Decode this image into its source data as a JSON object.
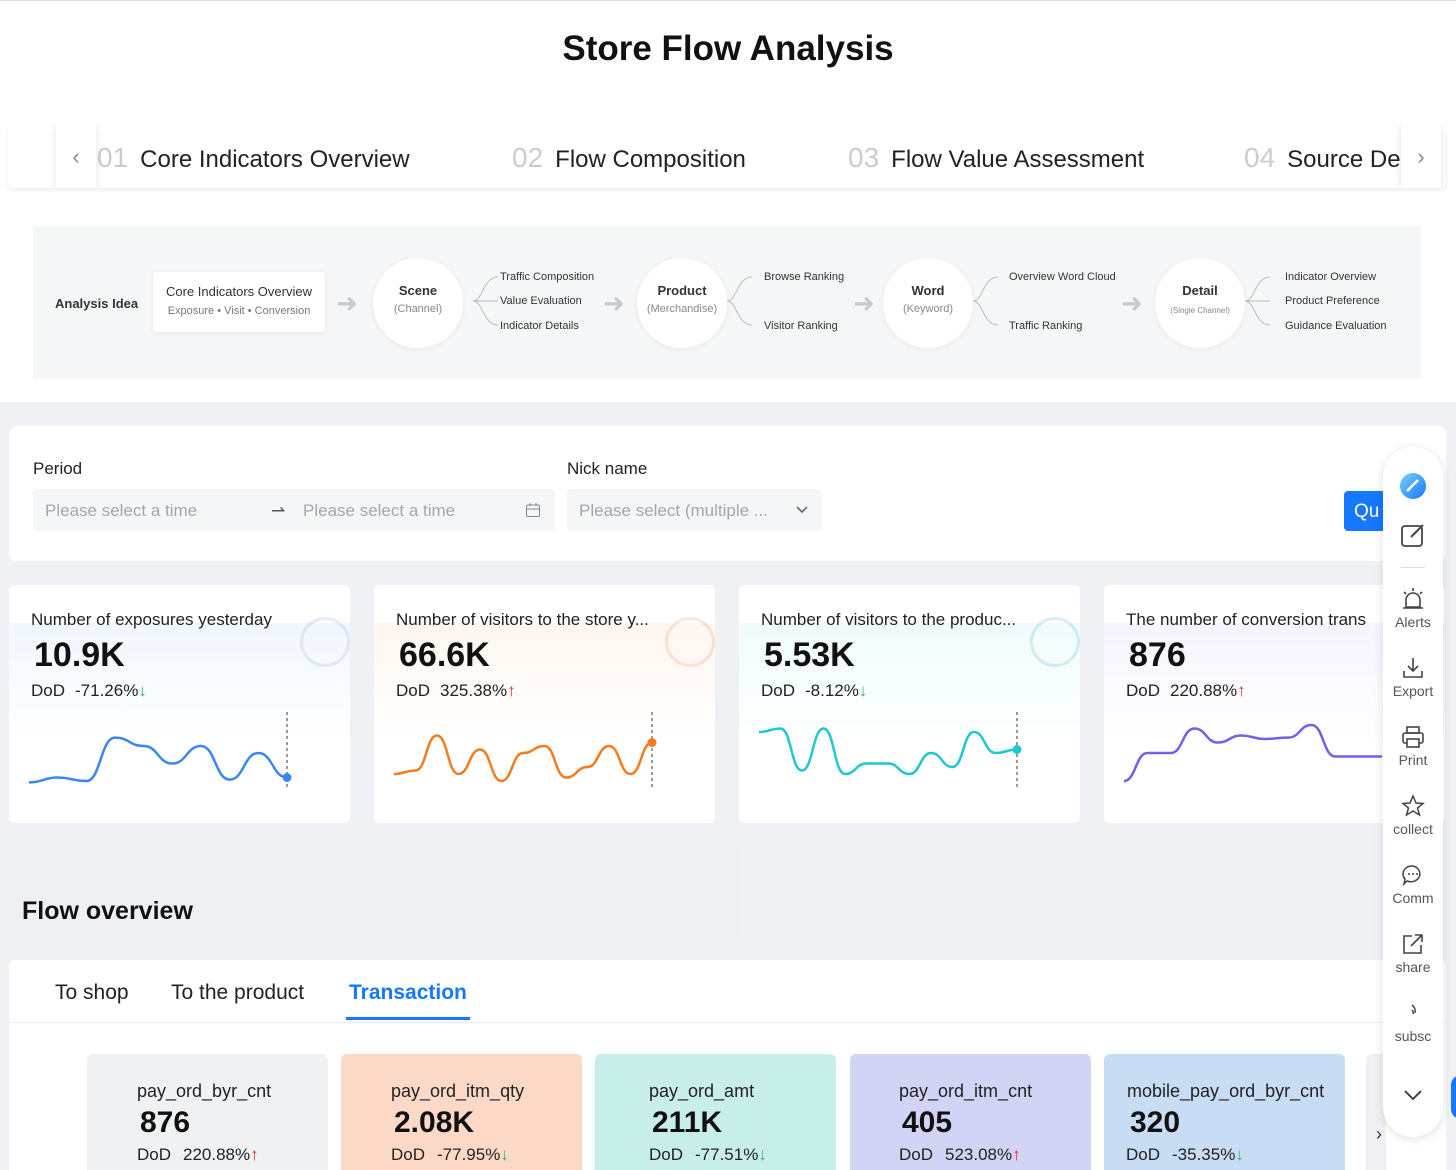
{
  "page": {
    "title": "Store Flow Analysis"
  },
  "steps": [
    {
      "num": "01",
      "label": "Core Indicators Overview"
    },
    {
      "num": "02",
      "label": "Flow Composition"
    },
    {
      "num": "03",
      "label": "Flow Value Assessment"
    },
    {
      "num": "04",
      "label": "Source De"
    }
  ],
  "analysis": {
    "label": "Analysis Idea",
    "box": {
      "title": "Core Indicators Overview",
      "subtitle": "Exposure • Visit • Conversion"
    },
    "nodes": [
      {
        "title": "Scene",
        "sub": "(Channel)",
        "branches": [
          "Traffic Composition",
          "Value Evaluation",
          "Indicator Details"
        ]
      },
      {
        "title": "Product",
        "sub": "(Merchandise)",
        "branches": [
          "Browse Ranking",
          "Visitor Ranking"
        ]
      },
      {
        "title": "Word",
        "sub": "(Keyword)",
        "branches": [
          "Overview Word Cloud",
          "Traffic Ranking"
        ]
      },
      {
        "title": "Detail",
        "sub": "(Single Channel)",
        "branches": [
          "Indicator Overview",
          "Product Preference",
          "Guidance Evaluation"
        ]
      }
    ]
  },
  "filters": {
    "period_label": "Period",
    "period_start_placeholder": "Please select a time",
    "period_end_placeholder": "Please select a time",
    "nick_label": "Nick name",
    "nick_placeholder": "Please select (multiple ...",
    "query_label": "Qu"
  },
  "kpis": [
    {
      "title": "Number of exposures yesterday",
      "value": "10.9K",
      "dod_label": "DoD",
      "dod": "-71.26%",
      "direction": "down",
      "color": "#3a86f5",
      "series": [
        0.08,
        0.15,
        0.1,
        0.72,
        0.6,
        0.35,
        0.6,
        0.12,
        0.5,
        0.15
      ]
    },
    {
      "title": "Number of visitors to the store y...",
      "value": "66.6K",
      "dod_label": "DoD",
      "dod": "325.38%",
      "direction": "up",
      "color": "#f67a1e",
      "series": [
        0.2,
        0.25,
        0.75,
        0.2,
        0.55,
        0.1,
        0.5,
        0.6,
        0.15,
        0.3,
        0.6,
        0.2,
        0.65
      ]
    },
    {
      "title": "Number of visitors to the produc...",
      "value": "5.53K",
      "dod_label": "DoD",
      "dod": "-8.12%",
      "direction": "down",
      "color": "#1ec8cf",
      "series": [
        0.8,
        0.85,
        0.25,
        0.85,
        0.2,
        0.35,
        0.35,
        0.2,
        0.5,
        0.3,
        0.8,
        0.5,
        0.55
      ]
    },
    {
      "title": "The number of conversion trans",
      "value": "876",
      "dod_label": "DoD",
      "dod": "220.88%",
      "direction": "up",
      "color": "#7b5ce6",
      "series": [
        0.1,
        0.5,
        0.5,
        0.85,
        0.65,
        0.75,
        0.7,
        0.72,
        0.9,
        0.45,
        0.45,
        0.45
      ]
    }
  ],
  "flow": {
    "title": "Flow overview",
    "tabs": [
      "To shop",
      "To the product",
      "Transaction"
    ],
    "active_tab": "Transaction"
  },
  "metrics": [
    {
      "name": "pay_ord_byr_cnt",
      "value": "876",
      "dod_label": "DoD",
      "dod": "220.88%",
      "direction": "up",
      "bg": "#f0f1f3"
    },
    {
      "name": "pay_ord_itm_qty",
      "value": "2.08K",
      "dod_label": "DoD",
      "dod": "-77.95%",
      "direction": "down",
      "bg": "#fbd9c6"
    },
    {
      "name": "pay_ord_amt",
      "value": "211K",
      "dod_label": "DoD",
      "dod": "-77.51%",
      "direction": "down",
      "bg": "#c8eeea"
    },
    {
      "name": "pay_ord_itm_cnt",
      "value": "405",
      "dod_label": "DoD",
      "dod": "523.08%",
      "direction": "up",
      "bg": "#d2d4f5"
    },
    {
      "name": "mobile_pay_ord_byr_cnt",
      "value": "320",
      "dod_label": "DoD",
      "dod": "-35.35%",
      "direction": "down",
      "bg": "#c8dcf4"
    }
  ],
  "toolbar": {
    "items": [
      {
        "label": "",
        "icon": "app-logo-icon"
      },
      {
        "label": "",
        "icon": "edit-icon"
      },
      {
        "label": "Alerts",
        "icon": "alarm-icon"
      },
      {
        "label": "Export",
        "icon": "download-icon"
      },
      {
        "label": "Print",
        "icon": "printer-icon"
      },
      {
        "label": "collect",
        "icon": "star-icon"
      },
      {
        "label": "Comm",
        "icon": "comment-icon"
      },
      {
        "label": "share",
        "icon": "share-icon"
      },
      {
        "label": "subsc",
        "icon": "subscribe-icon"
      },
      {
        "label": "",
        "icon": "chevron-down-icon"
      }
    ]
  }
}
